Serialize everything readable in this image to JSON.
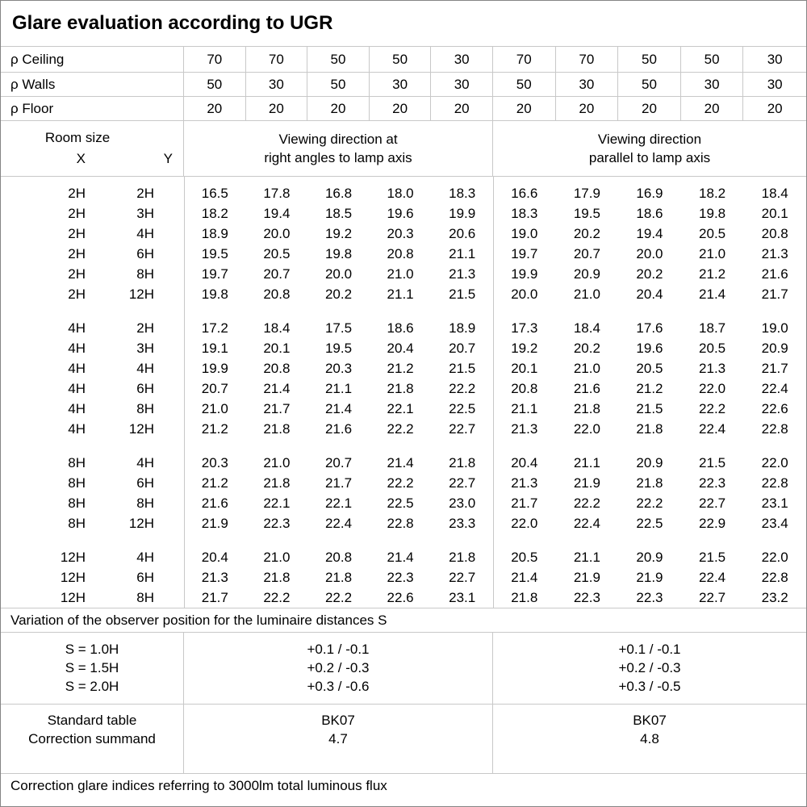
{
  "title": "Glare evaluation according to UGR",
  "reflectances": {
    "rows": [
      {
        "label": "ρ Ceiling",
        "values": [
          "70",
          "70",
          "50",
          "50",
          "30",
          "70",
          "70",
          "50",
          "50",
          "30"
        ]
      },
      {
        "label": "ρ Walls",
        "values": [
          "50",
          "30",
          "50",
          "30",
          "30",
          "50",
          "30",
          "50",
          "30",
          "30"
        ]
      },
      {
        "label": "ρ Floor",
        "values": [
          "20",
          "20",
          "20",
          "20",
          "20",
          "20",
          "20",
          "20",
          "20",
          "20"
        ]
      }
    ]
  },
  "header": {
    "room_size_label": "Room size",
    "x_label": "X",
    "y_label": "Y",
    "left_group": "Viewing direction at\nright angles to lamp axis",
    "right_group": "Viewing direction\nparallel to lamp axis"
  },
  "ugr_table": {
    "groups": [
      {
        "rows": [
          {
            "x": "2H",
            "y": "2H",
            "values": [
              "16.5",
              "17.8",
              "16.8",
              "18.0",
              "18.3",
              "16.6",
              "17.9",
              "16.9",
              "18.2",
              "18.4"
            ]
          },
          {
            "x": "2H",
            "y": "3H",
            "values": [
              "18.2",
              "19.4",
              "18.5",
              "19.6",
              "19.9",
              "18.3",
              "19.5",
              "18.6",
              "19.8",
              "20.1"
            ]
          },
          {
            "x": "2H",
            "y": "4H",
            "values": [
              "18.9",
              "20.0",
              "19.2",
              "20.3",
              "20.6",
              "19.0",
              "20.2",
              "19.4",
              "20.5",
              "20.8"
            ]
          },
          {
            "x": "2H",
            "y": "6H",
            "values": [
              "19.5",
              "20.5",
              "19.8",
              "20.8",
              "21.1",
              "19.7",
              "20.7",
              "20.0",
              "21.0",
              "21.3"
            ]
          },
          {
            "x": "2H",
            "y": "8H",
            "values": [
              "19.7",
              "20.7",
              "20.0",
              "21.0",
              "21.3",
              "19.9",
              "20.9",
              "20.2",
              "21.2",
              "21.6"
            ]
          },
          {
            "x": "2H",
            "y": "12H",
            "values": [
              "19.8",
              "20.8",
              "20.2",
              "21.1",
              "21.5",
              "20.0",
              "21.0",
              "20.4",
              "21.4",
              "21.7"
            ]
          }
        ]
      },
      {
        "rows": [
          {
            "x": "4H",
            "y": "2H",
            "values": [
              "17.2",
              "18.4",
              "17.5",
              "18.6",
              "18.9",
              "17.3",
              "18.4",
              "17.6",
              "18.7",
              "19.0"
            ]
          },
          {
            "x": "4H",
            "y": "3H",
            "values": [
              "19.1",
              "20.1",
              "19.5",
              "20.4",
              "20.7",
              "19.2",
              "20.2",
              "19.6",
              "20.5",
              "20.9"
            ]
          },
          {
            "x": "4H",
            "y": "4H",
            "values": [
              "19.9",
              "20.8",
              "20.3",
              "21.2",
              "21.5",
              "20.1",
              "21.0",
              "20.5",
              "21.3",
              "21.7"
            ]
          },
          {
            "x": "4H",
            "y": "6H",
            "values": [
              "20.7",
              "21.4",
              "21.1",
              "21.8",
              "22.2",
              "20.8",
              "21.6",
              "21.2",
              "22.0",
              "22.4"
            ]
          },
          {
            "x": "4H",
            "y": "8H",
            "values": [
              "21.0",
              "21.7",
              "21.4",
              "22.1",
              "22.5",
              "21.1",
              "21.8",
              "21.5",
              "22.2",
              "22.6"
            ]
          },
          {
            "x": "4H",
            "y": "12H",
            "values": [
              "21.2",
              "21.8",
              "21.6",
              "22.2",
              "22.7",
              "21.3",
              "22.0",
              "21.8",
              "22.4",
              "22.8"
            ]
          }
        ]
      },
      {
        "rows": [
          {
            "x": "8H",
            "y": "4H",
            "values": [
              "20.3",
              "21.0",
              "20.7",
              "21.4",
              "21.8",
              "20.4",
              "21.1",
              "20.9",
              "21.5",
              "22.0"
            ]
          },
          {
            "x": "8H",
            "y": "6H",
            "values": [
              "21.2",
              "21.8",
              "21.7",
              "22.2",
              "22.7",
              "21.3",
              "21.9",
              "21.8",
              "22.3",
              "22.8"
            ]
          },
          {
            "x": "8H",
            "y": "8H",
            "values": [
              "21.6",
              "22.1",
              "22.1",
              "22.5",
              "23.0",
              "21.7",
              "22.2",
              "22.2",
              "22.7",
              "23.1"
            ]
          },
          {
            "x": "8H",
            "y": "12H",
            "values": [
              "21.9",
              "22.3",
              "22.4",
              "22.8",
              "23.3",
              "22.0",
              "22.4",
              "22.5",
              "22.9",
              "23.4"
            ]
          }
        ]
      },
      {
        "rows": [
          {
            "x": "12H",
            "y": "4H",
            "values": [
              "20.4",
              "21.0",
              "20.8",
              "21.4",
              "21.8",
              "20.5",
              "21.1",
              "20.9",
              "21.5",
              "22.0"
            ]
          },
          {
            "x": "12H",
            "y": "6H",
            "values": [
              "21.3",
              "21.8",
              "21.8",
              "22.3",
              "22.7",
              "21.4",
              "21.9",
              "21.9",
              "22.4",
              "22.8"
            ]
          },
          {
            "x": "12H",
            "y": "8H",
            "values": [
              "21.7",
              "22.2",
              "22.2",
              "22.6",
              "23.1",
              "21.8",
              "22.3",
              "22.3",
              "22.7",
              "23.2"
            ]
          }
        ]
      }
    ]
  },
  "variation": {
    "note": "Variation of the observer position for the luminaire distances S",
    "labels": [
      "S = 1.0H",
      "S = 1.5H",
      "S = 2.0H"
    ],
    "left_values": [
      "+0.1 / -0.1",
      "+0.2 / -0.3",
      "+0.3 / -0.6"
    ],
    "right_values": [
      "+0.1 / -0.1",
      "+0.2 / -0.3",
      "+0.3 / -0.5"
    ]
  },
  "standard": {
    "labels": [
      "Standard table",
      "Correction summand"
    ],
    "left_values": [
      "BK07",
      "4.7"
    ],
    "right_values": [
      "BK07",
      "4.8"
    ]
  },
  "footer_note": "Correction glare indices referring to 3000lm total luminous flux",
  "colors": {
    "background": "#ffffff",
    "text": "#000000",
    "grid_line": "#c8c8c8",
    "outer_border": "#858585"
  }
}
